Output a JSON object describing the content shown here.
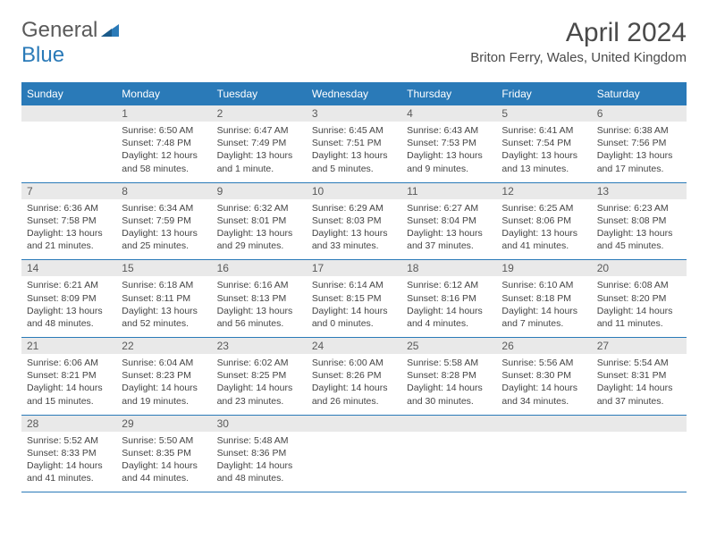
{
  "logo": {
    "word1": "General",
    "word2": "Blue"
  },
  "title": "April 2024",
  "location": "Briton Ferry, Wales, United Kingdom",
  "colors": {
    "header_bg": "#2a7ab8",
    "header_text": "#ffffff",
    "daynum_bg": "#e9e9e9",
    "daynum_text": "#5a5a5a",
    "body_text": "#444444",
    "rule": "#2a7ab8",
    "logo_gray": "#5a5a5a",
    "logo_blue": "#2a7ab8"
  },
  "day_headers": [
    "Sunday",
    "Monday",
    "Tuesday",
    "Wednesday",
    "Thursday",
    "Friday",
    "Saturday"
  ],
  "weeks": [
    [
      {
        "day": "",
        "sunrise": "",
        "sunset": "",
        "daylight": ""
      },
      {
        "day": "1",
        "sunrise": "Sunrise: 6:50 AM",
        "sunset": "Sunset: 7:48 PM",
        "daylight": "Daylight: 12 hours and 58 minutes."
      },
      {
        "day": "2",
        "sunrise": "Sunrise: 6:47 AM",
        "sunset": "Sunset: 7:49 PM",
        "daylight": "Daylight: 13 hours and 1 minute."
      },
      {
        "day": "3",
        "sunrise": "Sunrise: 6:45 AM",
        "sunset": "Sunset: 7:51 PM",
        "daylight": "Daylight: 13 hours and 5 minutes."
      },
      {
        "day": "4",
        "sunrise": "Sunrise: 6:43 AM",
        "sunset": "Sunset: 7:53 PM",
        "daylight": "Daylight: 13 hours and 9 minutes."
      },
      {
        "day": "5",
        "sunrise": "Sunrise: 6:41 AM",
        "sunset": "Sunset: 7:54 PM",
        "daylight": "Daylight: 13 hours and 13 minutes."
      },
      {
        "day": "6",
        "sunrise": "Sunrise: 6:38 AM",
        "sunset": "Sunset: 7:56 PM",
        "daylight": "Daylight: 13 hours and 17 minutes."
      }
    ],
    [
      {
        "day": "7",
        "sunrise": "Sunrise: 6:36 AM",
        "sunset": "Sunset: 7:58 PM",
        "daylight": "Daylight: 13 hours and 21 minutes."
      },
      {
        "day": "8",
        "sunrise": "Sunrise: 6:34 AM",
        "sunset": "Sunset: 7:59 PM",
        "daylight": "Daylight: 13 hours and 25 minutes."
      },
      {
        "day": "9",
        "sunrise": "Sunrise: 6:32 AM",
        "sunset": "Sunset: 8:01 PM",
        "daylight": "Daylight: 13 hours and 29 minutes."
      },
      {
        "day": "10",
        "sunrise": "Sunrise: 6:29 AM",
        "sunset": "Sunset: 8:03 PM",
        "daylight": "Daylight: 13 hours and 33 minutes."
      },
      {
        "day": "11",
        "sunrise": "Sunrise: 6:27 AM",
        "sunset": "Sunset: 8:04 PM",
        "daylight": "Daylight: 13 hours and 37 minutes."
      },
      {
        "day": "12",
        "sunrise": "Sunrise: 6:25 AM",
        "sunset": "Sunset: 8:06 PM",
        "daylight": "Daylight: 13 hours and 41 minutes."
      },
      {
        "day": "13",
        "sunrise": "Sunrise: 6:23 AM",
        "sunset": "Sunset: 8:08 PM",
        "daylight": "Daylight: 13 hours and 45 minutes."
      }
    ],
    [
      {
        "day": "14",
        "sunrise": "Sunrise: 6:21 AM",
        "sunset": "Sunset: 8:09 PM",
        "daylight": "Daylight: 13 hours and 48 minutes."
      },
      {
        "day": "15",
        "sunrise": "Sunrise: 6:18 AM",
        "sunset": "Sunset: 8:11 PM",
        "daylight": "Daylight: 13 hours and 52 minutes."
      },
      {
        "day": "16",
        "sunrise": "Sunrise: 6:16 AM",
        "sunset": "Sunset: 8:13 PM",
        "daylight": "Daylight: 13 hours and 56 minutes."
      },
      {
        "day": "17",
        "sunrise": "Sunrise: 6:14 AM",
        "sunset": "Sunset: 8:15 PM",
        "daylight": "Daylight: 14 hours and 0 minutes."
      },
      {
        "day": "18",
        "sunrise": "Sunrise: 6:12 AM",
        "sunset": "Sunset: 8:16 PM",
        "daylight": "Daylight: 14 hours and 4 minutes."
      },
      {
        "day": "19",
        "sunrise": "Sunrise: 6:10 AM",
        "sunset": "Sunset: 8:18 PM",
        "daylight": "Daylight: 14 hours and 7 minutes."
      },
      {
        "day": "20",
        "sunrise": "Sunrise: 6:08 AM",
        "sunset": "Sunset: 8:20 PM",
        "daylight": "Daylight: 14 hours and 11 minutes."
      }
    ],
    [
      {
        "day": "21",
        "sunrise": "Sunrise: 6:06 AM",
        "sunset": "Sunset: 8:21 PM",
        "daylight": "Daylight: 14 hours and 15 minutes."
      },
      {
        "day": "22",
        "sunrise": "Sunrise: 6:04 AM",
        "sunset": "Sunset: 8:23 PM",
        "daylight": "Daylight: 14 hours and 19 minutes."
      },
      {
        "day": "23",
        "sunrise": "Sunrise: 6:02 AM",
        "sunset": "Sunset: 8:25 PM",
        "daylight": "Daylight: 14 hours and 23 minutes."
      },
      {
        "day": "24",
        "sunrise": "Sunrise: 6:00 AM",
        "sunset": "Sunset: 8:26 PM",
        "daylight": "Daylight: 14 hours and 26 minutes."
      },
      {
        "day": "25",
        "sunrise": "Sunrise: 5:58 AM",
        "sunset": "Sunset: 8:28 PM",
        "daylight": "Daylight: 14 hours and 30 minutes."
      },
      {
        "day": "26",
        "sunrise": "Sunrise: 5:56 AM",
        "sunset": "Sunset: 8:30 PM",
        "daylight": "Daylight: 14 hours and 34 minutes."
      },
      {
        "day": "27",
        "sunrise": "Sunrise: 5:54 AM",
        "sunset": "Sunset: 8:31 PM",
        "daylight": "Daylight: 14 hours and 37 minutes."
      }
    ],
    [
      {
        "day": "28",
        "sunrise": "Sunrise: 5:52 AM",
        "sunset": "Sunset: 8:33 PM",
        "daylight": "Daylight: 14 hours and 41 minutes."
      },
      {
        "day": "29",
        "sunrise": "Sunrise: 5:50 AM",
        "sunset": "Sunset: 8:35 PM",
        "daylight": "Daylight: 14 hours and 44 minutes."
      },
      {
        "day": "30",
        "sunrise": "Sunrise: 5:48 AM",
        "sunset": "Sunset: 8:36 PM",
        "daylight": "Daylight: 14 hours and 48 minutes."
      },
      {
        "day": "",
        "sunrise": "",
        "sunset": "",
        "daylight": ""
      },
      {
        "day": "",
        "sunrise": "",
        "sunset": "",
        "daylight": ""
      },
      {
        "day": "",
        "sunrise": "",
        "sunset": "",
        "daylight": ""
      },
      {
        "day": "",
        "sunrise": "",
        "sunset": "",
        "daylight": ""
      }
    ]
  ]
}
